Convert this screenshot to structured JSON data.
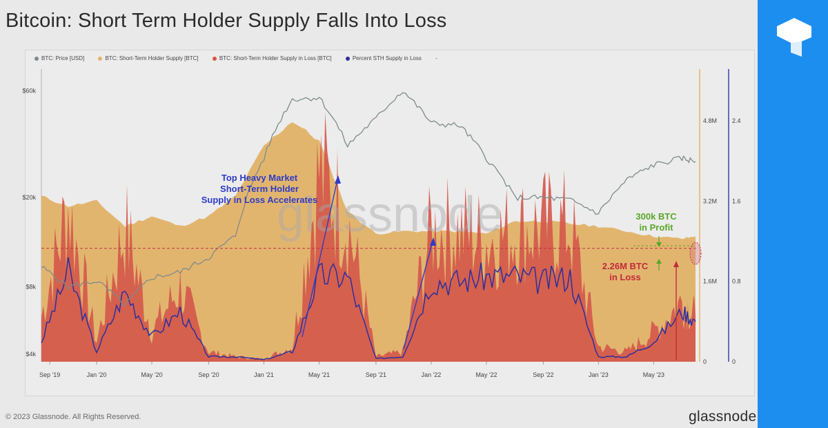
{
  "title": "Bitcoin: Short Term Holder Supply Falls Into Loss",
  "copyright": "© 2023 Glassnode. All Rights Reserved.",
  "brand": "glassnode",
  "watermark": "glassnode",
  "logo_icon": "tradingview-t-icon",
  "legend": [
    {
      "label": "BTC: Price [USD]",
      "color": "#7f8a8a"
    },
    {
      "label": "BTC: Short-Term Holder Supply [BTC]",
      "color": "#e6b36a"
    },
    {
      "label": "BTC: Short-Term Holder Supply in Loss [BTC]",
      "color": "#e0533c"
    },
    {
      "label": "Percent STH Supply in Loss",
      "color": "#2b2f9e"
    }
  ],
  "legend_trailing": "-",
  "annotations": {
    "top_heavy": [
      "Top Heavy Market",
      "Short-Term Holder",
      "Supply in Loss Accelerates"
    ],
    "profit": [
      "300k BTC",
      "in Profit"
    ],
    "loss": [
      "2.26M BTC",
      "in Loss"
    ]
  },
  "chart_data": {
    "type": "area",
    "x_ticks": [
      "Sep '19",
      "Jan '20",
      "May '20",
      "Sep '20",
      "Jan '21",
      "May '21",
      "Sep '21",
      "Jan '22",
      "May '22",
      "Sep '22",
      "Jan '23",
      "May '23"
    ],
    "price_axis": {
      "scale": "log",
      "ticks": [
        "$4k",
        "$8k",
        "$20k",
        "$60k"
      ],
      "values": [
        4000,
        8000,
        20000,
        60000
      ]
    },
    "supply_axis": {
      "ticks": [
        "0",
        "1.6M",
        "3.2M",
        "4.8M"
      ],
      "values": [
        0,
        1600000,
        3200000,
        4800000
      ]
    },
    "percent_axis": {
      "ticks": [
        "0",
        "0.8",
        "1.6",
        "2.4"
      ],
      "values": [
        0,
        0.8,
        1.6,
        2.4
      ]
    },
    "dates": [
      2019.67,
      2019.83,
      2020.0,
      2020.17,
      2020.33,
      2020.5,
      2020.67,
      2020.83,
      2021.0,
      2021.17,
      2021.33,
      2021.5,
      2021.67,
      2021.83,
      2022.0,
      2022.17,
      2022.33,
      2022.5,
      2022.67,
      2022.83,
      2023.0,
      2023.17,
      2023.33,
      2023.5,
      2023.58
    ],
    "series": [
      {
        "name": "BTC: Price [USD]",
        "values": [
          9800,
          8000,
          8500,
          6600,
          8800,
          9300,
          10800,
          13500,
          30000,
          55000,
          56000,
          34000,
          45000,
          60000,
          43000,
          42000,
          30000,
          20000,
          20000,
          19500,
          17000,
          24000,
          28000,
          30000,
          29000
        ]
      },
      {
        "name": "BTC: Short-Term Holder Supply [BTC]",
        "values": [
          3300000,
          3100000,
          3200000,
          2700000,
          2900000,
          2700000,
          2900000,
          3300000,
          4300000,
          4800000,
          4400000,
          3000000,
          2550000,
          2600000,
          2600000,
          2600000,
          2550000,
          2800000,
          2800000,
          2750000,
          2700000,
          2600000,
          2500000,
          2450000,
          2500000
        ]
      },
      {
        "name": "BTC: Short-Term Holder Supply in Loss [BTC]",
        "values": [
          900000,
          3100000,
          400000,
          2700000,
          600000,
          1500000,
          200000,
          100000,
          50000,
          300000,
          3800000,
          2800000,
          100000,
          200000,
          2600000,
          2600000,
          2400000,
          2600000,
          2700000,
          2700000,
          300000,
          200000,
          600000,
          1200000,
          900000
        ]
      },
      {
        "name": "Percent STH Supply in Loss",
        "values": [
          0.2,
          0.9,
          0.1,
          0.7,
          0.25,
          0.5,
          0.05,
          0.05,
          0.02,
          0.1,
          0.85,
          0.85,
          0.03,
          0.05,
          0.8,
          0.8,
          0.85,
          0.85,
          0.8,
          0.85,
          0.05,
          0.05,
          0.2,
          0.5,
          0.4
        ]
      }
    ],
    "reference_line": {
      "value": 2260000,
      "label": "2.26M BTC in Loss"
    }
  }
}
